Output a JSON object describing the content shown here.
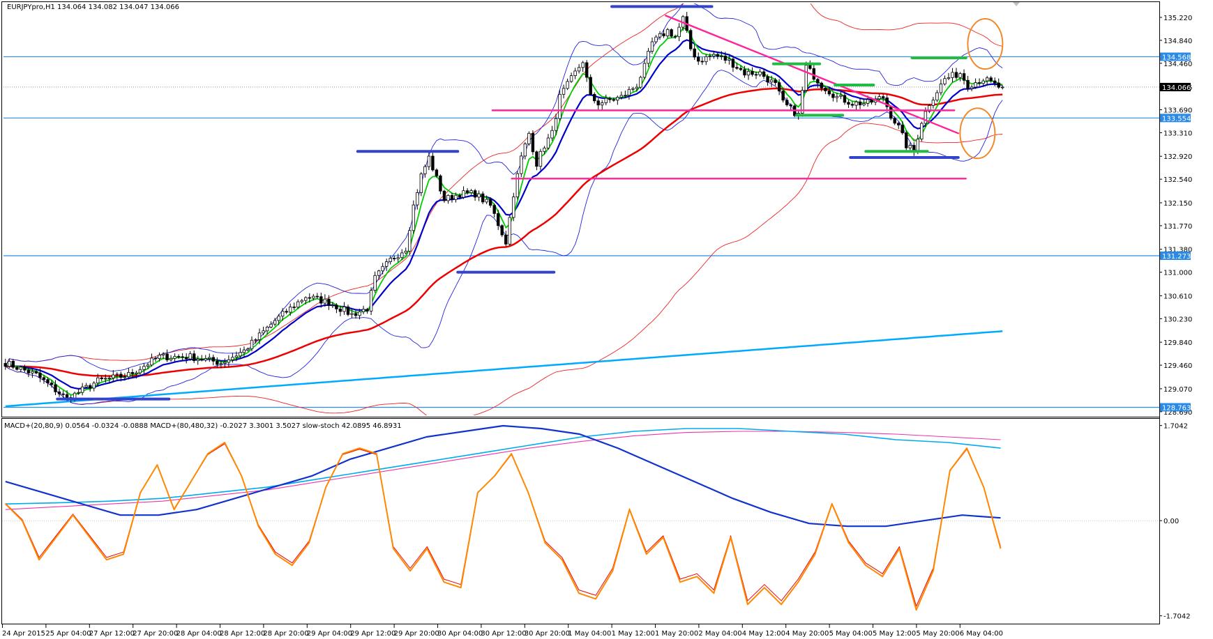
{
  "chart_data": [
    {
      "type": "candlestick",
      "title": "EURJPYpro,H1  134.064 134.082 134.047 134.066",
      "symbol": "EURJPYpro",
      "timeframe": "H1",
      "ohlc_last": {
        "open": 134.064,
        "high": 134.082,
        "low": 134.047,
        "close": 134.066
      },
      "ylim": [
        128.63,
        135.45
      ],
      "y_ticks": [
        "135.220",
        "134.840",
        "134.460",
        "134.066",
        "133.690",
        "133.310",
        "132.920",
        "132.540",
        "132.150",
        "131.770",
        "131.380",
        "131.000",
        "130.610",
        "130.230",
        "129.840",
        "129.460",
        "129.070",
        "128.690"
      ],
      "price_tags": [
        {
          "value": "134.568",
          "color": "#2a8ae6"
        },
        {
          "value": "134.066",
          "color": "#000000"
        },
        {
          "value": "133.554",
          "color": "#2a8ae6"
        },
        {
          "value": "131.273",
          "color": "#2a8ae6"
        },
        {
          "value": "128.763",
          "color": "#2a8ae6"
        }
      ],
      "x_labels": [
        "24 Apr 2015",
        "25 Apr 04:00",
        "27 Apr 12:00",
        "27 Apr 20:00",
        "28 Apr 04:00",
        "28 Apr 12:00",
        "28 Apr 20:00",
        "29 Apr 04:00",
        "29 Apr 12:00",
        "29 Apr 20:00",
        "30 Apr 04:00",
        "30 Apr 12:00",
        "30 Apr 20:00",
        "1 May 04:00",
        "1 May 12:00",
        "1 May 20:00",
        "2 May 04:00",
        "4 May 12:00",
        "4 May 20:00",
        "5 May 04:00",
        "5 May 12:00",
        "5 May 20:00",
        "6 May 04:00"
      ],
      "price_path": [
        [
          0,
          129.5
        ],
        [
          8,
          129.3
        ],
        [
          16,
          128.9
        ],
        [
          24,
          129.2
        ],
        [
          32,
          129.3
        ],
        [
          40,
          129.6
        ],
        [
          48,
          129.6
        ],
        [
          56,
          129.5
        ],
        [
          62,
          129.7
        ],
        [
          70,
          130.2
        ],
        [
          78,
          130.6
        ],
        [
          84,
          130.5
        ],
        [
          90,
          130.3
        ],
        [
          94,
          130.4
        ],
        [
          96,
          130.9
        ],
        [
          100,
          131.2
        ],
        [
          104,
          131.4
        ],
        [
          106,
          132.1
        ],
        [
          108,
          132.6
        ],
        [
          110,
          132.9
        ],
        [
          114,
          132.2
        ],
        [
          118,
          132.3
        ],
        [
          122,
          132.3
        ],
        [
          126,
          132.1
        ],
        [
          128,
          131.8
        ],
        [
          130,
          131.5
        ],
        [
          132,
          132.3
        ],
        [
          134,
          132.9
        ],
        [
          136,
          133.3
        ],
        [
          138,
          132.8
        ],
        [
          140,
          133.1
        ],
        [
          142,
          133.3
        ],
        [
          144,
          133.9
        ],
        [
          146,
          134.1
        ],
        [
          148,
          134.3
        ],
        [
          150,
          134.5
        ],
        [
          152,
          133.9
        ],
        [
          154,
          133.8
        ],
        [
          160,
          133.9
        ],
        [
          162,
          134.0
        ],
        [
          164,
          134.1
        ],
        [
          166,
          134.4
        ],
        [
          168,
          134.8
        ],
        [
          170,
          134.9
        ],
        [
          172,
          135.0
        ],
        [
          174,
          134.9
        ],
        [
          176,
          135.2
        ],
        [
          178,
          134.7
        ],
        [
          180,
          134.5
        ],
        [
          184,
          134.6
        ],
        [
          188,
          134.5
        ],
        [
          192,
          134.3
        ],
        [
          196,
          134.3
        ],
        [
          200,
          134.1
        ],
        [
          202,
          133.8
        ],
        [
          204,
          133.7
        ],
        [
          206,
          133.6
        ],
        [
          208,
          134.4
        ],
        [
          212,
          134.1
        ],
        [
          216,
          133.9
        ],
        [
          220,
          133.8
        ],
        [
          224,
          133.8
        ],
        [
          228,
          133.9
        ],
        [
          230,
          133.6
        ],
        [
          232,
          133.4
        ],
        [
          234,
          133.1
        ],
        [
          236,
          133.0
        ],
        [
          238,
          133.5
        ],
        [
          240,
          133.8
        ],
        [
          242,
          134.0
        ],
        [
          244,
          134.2
        ],
        [
          248,
          134.3
        ],
        [
          250,
          134.1
        ],
        [
          254,
          134.2
        ],
        [
          258,
          134.07
        ]
      ],
      "series": [
        {
          "color": "#00cc00"
        },
        {
          "color": "#0000cc"
        },
        {
          "color": "#ee0000"
        },
        {
          "color": "#00aaff"
        },
        {
          "color": "#2222dd"
        }
      ],
      "annotations": [
        {
          "type": "hline",
          "color": "#2a8ae6",
          "y": 134.568
        },
        {
          "type": "hline",
          "color": "#2a8ae6",
          "y": 133.554
        },
        {
          "type": "hline",
          "color": "#2a8ae6",
          "y": 131.273
        },
        {
          "type": "hline",
          "color": "#2a8ae6",
          "y": 128.763
        },
        {
          "type": "segment",
          "color": "#ff2299",
          "from": [
            127,
            133.68
          ],
          "to": [
            247,
            133.68
          ]
        },
        {
          "type": "segment",
          "color": "#ff2299",
          "from": [
            132,
            132.55
          ],
          "to": [
            250,
            132.55
          ]
        },
        {
          "type": "segment",
          "color": "#ff2299",
          "from": [
            172,
            135.25
          ],
          "to": [
            248,
            133.3
          ]
        },
        {
          "type": "segment",
          "color": "#3344cc",
          "from": [
            158,
            135.4
          ],
          "to": [
            184,
            135.4
          ]
        },
        {
          "type": "segment",
          "color": "#3344cc",
          "from": [
            92,
            133.0
          ],
          "to": [
            118,
            133.0
          ]
        },
        {
          "type": "segment",
          "color": "#3344cc",
          "from": [
            118,
            131.0
          ],
          "to": [
            143,
            131.0
          ]
        },
        {
          "type": "segment",
          "color": "#3344cc",
          "from": [
            14,
            128.9
          ],
          "to": [
            43,
            128.9
          ]
        },
        {
          "type": "segment",
          "color": "#3344cc",
          "from": [
            220,
            132.9
          ],
          "to": [
            248,
            132.9
          ]
        },
        {
          "type": "segment",
          "color": "#22bb44",
          "from": [
            200,
            134.45
          ],
          "to": [
            212,
            134.45
          ]
        },
        {
          "type": "segment",
          "color": "#22bb44",
          "from": [
            216,
            134.1
          ],
          "to": [
            226,
            134.1
          ]
        },
        {
          "type": "segment",
          "color": "#22bb44",
          "from": [
            206,
            133.6
          ],
          "to": [
            218,
            133.6
          ]
        },
        {
          "type": "segment",
          "color": "#22bb44",
          "from": [
            236,
            134.55
          ],
          "to": [
            250,
            134.55
          ]
        },
        {
          "type": "segment",
          "color": "#22bb44",
          "from": [
            224,
            133.0
          ],
          "to": [
            240,
            133.0
          ]
        },
        {
          "type": "circle",
          "color": "#f08a2a",
          "center": [
            255,
            134.78
          ]
        },
        {
          "type": "circle",
          "color": "#f08a2a",
          "center": [
            253,
            133.3
          ]
        }
      ]
    },
    {
      "type": "line",
      "title": "MACD+(20,80,9) 0.0564 -0.0324 -0.0888  MACD+(80,480,32) -0.2027 3.3001 3.5027  slow-stoch 42.0895 46.8931",
      "ylim": [
        -1.82,
        1.8
      ],
      "y_ticks": [
        "1.7042",
        "0.00",
        "-1.7042"
      ],
      "series": [
        {
          "color": "#ff8800",
          "values": [
            0.3,
            0.0,
            -0.7,
            -0.3,
            0.1,
            -0.3,
            -0.7,
            -0.6,
            0.5,
            1.0,
            0.2,
            0.7,
            1.2,
            1.4,
            0.8,
            -0.1,
            -0.6,
            -0.8,
            -0.4,
            0.6,
            1.2,
            1.3,
            1.2,
            -0.5,
            -0.9,
            -0.5,
            -1.1,
            -1.2,
            0.5,
            0.8,
            1.2,
            0.5,
            -0.4,
            -0.7,
            -1.3,
            -1.4,
            -0.9,
            0.2,
            -0.6,
            -0.3,
            -1.1,
            -1.0,
            -1.3,
            -0.3,
            -1.5,
            -1.2,
            -1.5,
            -1.1,
            -0.6,
            0.3,
            -0.4,
            -0.8,
            -1.0,
            -0.5,
            -1.6,
            -0.9,
            0.9,
            1.3,
            0.6,
            -0.5
          ]
        },
        {
          "color": "#ee0000",
          "values": [
            0.3,
            0.0,
            -0.7,
            -0.3,
            0.1,
            -0.3,
            -0.7,
            -0.6,
            0.5,
            1.0,
            0.2,
            0.7,
            1.2,
            1.4,
            0.8,
            -0.1,
            -0.6,
            -0.8,
            -0.4,
            0.6,
            1.2,
            1.3,
            1.2,
            -0.5,
            -0.9,
            -0.5,
            -1.1,
            -1.2,
            0.5,
            0.8,
            1.2,
            0.5,
            -0.4,
            -0.7,
            -1.3,
            -1.4,
            -0.9,
            0.2,
            -0.6,
            -0.3,
            -1.1,
            -1.0,
            -1.3,
            -0.3,
            -1.5,
            -1.2,
            -1.5,
            -1.1,
            -0.6,
            0.3,
            -0.4,
            -0.8,
            -1.0,
            -0.5,
            -1.6,
            -0.9,
            0.9,
            1.3,
            0.6,
            -0.5
          ]
        },
        {
          "color": "#1133cc",
          "values": [
            0.7,
            0.5,
            0.3,
            0.1,
            0.1,
            0.2,
            0.4,
            0.6,
            0.8,
            1.1,
            1.3,
            1.5,
            1.6,
            1.7,
            1.65,
            1.55,
            1.3,
            1.0,
            0.7,
            0.4,
            0.15,
            -0.05,
            -0.1,
            -0.1,
            0.0,
            0.1,
            0.05
          ]
        },
        {
          "color": "#00aaee",
          "values": [
            0.3,
            0.32,
            0.35,
            0.4,
            0.5,
            0.6,
            0.75,
            0.9,
            1.05,
            1.2,
            1.35,
            1.5,
            1.6,
            1.65,
            1.65,
            1.6,
            1.55,
            1.45,
            1.4,
            1.3
          ]
        },
        {
          "color": "#ee33aa",
          "values": [
            0.2,
            0.25,
            0.3,
            0.35,
            0.45,
            0.55,
            0.7,
            0.85,
            1.0,
            1.15,
            1.3,
            1.42,
            1.52,
            1.58,
            1.6,
            1.6,
            1.58,
            1.55,
            1.5,
            1.45
          ]
        }
      ]
    }
  ]
}
